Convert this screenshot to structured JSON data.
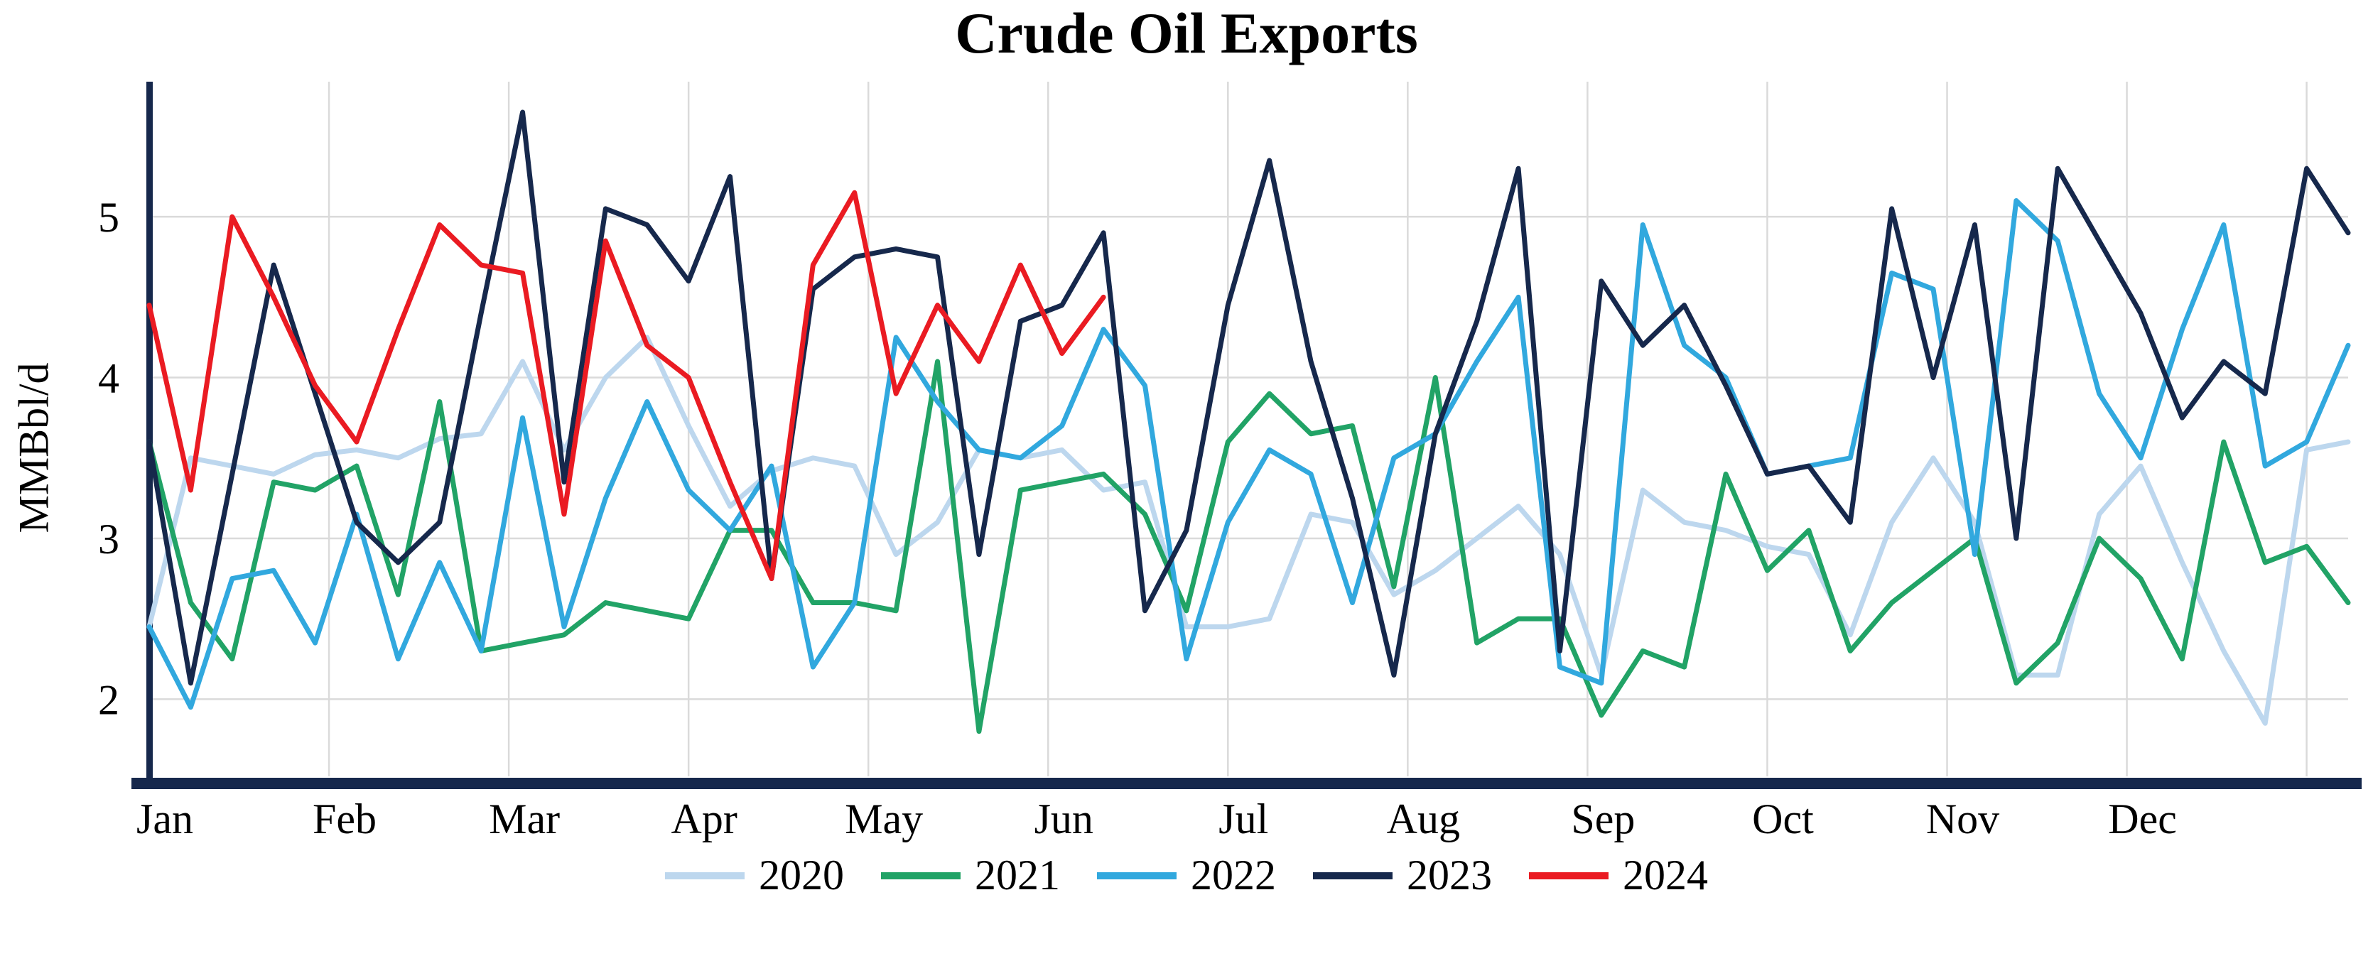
{
  "chart_data": {
    "type": "line",
    "title": "Crude Oil Exports",
    "ylabel": "MMBbl/d",
    "x_unit": "week of year",
    "months": [
      "Jan",
      "Feb",
      "Mar",
      "Apr",
      "May",
      "Jun",
      "Jul",
      "Aug",
      "Sep",
      "Oct",
      "Nov",
      "Dec"
    ],
    "yticks": [
      2,
      3,
      4,
      5
    ],
    "ylim": [
      1.52,
      5.84
    ],
    "weeks_domain": 53,
    "grid": true,
    "legend_position": "bottom",
    "colors": {
      "grid": "#DADADA",
      "axis": "#16284C",
      "background": "#FFFFFF"
    },
    "series": [
      {
        "name": "2020",
        "color": "#BDD7EE",
        "values": [
          2.45,
          3.5,
          3.45,
          3.4,
          3.52,
          3.55,
          3.5,
          3.62,
          3.65,
          4.1,
          3.55,
          4.0,
          4.25,
          3.7,
          3.2,
          3.42,
          3.5,
          3.45,
          2.9,
          3.1,
          3.55,
          3.5,
          3.55,
          3.3,
          3.35,
          2.45,
          2.45,
          2.5,
          3.15,
          3.1,
          2.65,
          2.8,
          3.0,
          3.2,
          2.9,
          2.15,
          3.3,
          3.1,
          3.05,
          2.95,
          2.9,
          2.4,
          3.1,
          3.5,
          3.1,
          2.15,
          2.15,
          3.15,
          3.45,
          2.85,
          2.3,
          1.85,
          3.55,
          3.6
        ]
      },
      {
        "name": "2021",
        "color": "#21A366",
        "values": [
          3.6,
          2.6,
          2.25,
          3.35,
          3.3,
          3.45,
          2.65,
          3.85,
          2.3,
          2.35,
          2.4,
          2.6,
          2.55,
          2.5,
          3.05,
          3.05,
          2.6,
          2.6,
          2.55,
          4.1,
          1.8,
          3.3,
          3.35,
          3.4,
          3.15,
          2.55,
          3.6,
          3.9,
          3.65,
          3.7,
          2.7,
          4.0,
          2.35,
          2.5,
          2.5,
          1.9,
          2.3,
          2.2,
          3.4,
          2.8,
          3.05,
          2.3,
          2.6,
          2.8,
          3.0,
          2.1,
          2.35,
          3.0,
          2.75,
          2.25,
          3.6,
          2.85,
          2.95,
          2.6
        ]
      },
      {
        "name": "2022",
        "color": "#31A8DE",
        "values": [
          2.45,
          1.95,
          2.75,
          2.8,
          2.35,
          3.15,
          2.25,
          2.85,
          2.3,
          3.75,
          2.45,
          3.25,
          3.85,
          3.3,
          3.05,
          3.45,
          2.2,
          2.6,
          4.25,
          3.85,
          3.55,
          3.5,
          3.7,
          4.3,
          3.95,
          2.25,
          3.1,
          3.55,
          3.4,
          2.6,
          3.5,
          3.65,
          4.1,
          4.5,
          2.2,
          2.1,
          4.95,
          4.2,
          4.0,
          3.4,
          3.45,
          3.5,
          4.65,
          4.55,
          2.9,
          5.1,
          4.85,
          3.9,
          3.5,
          4.3,
          4.95,
          3.45,
          3.6,
          4.2
        ]
      },
      {
        "name": "2023",
        "color": "#16284C",
        "values": [
          3.6,
          2.1,
          3.4,
          4.7,
          3.9,
          3.1,
          2.85,
          3.1,
          4.4,
          5.65,
          3.35,
          5.05,
          4.95,
          4.6,
          5.25,
          2.75,
          4.55,
          4.75,
          4.8,
          4.75,
          2.9,
          4.35,
          4.45,
          4.9,
          2.55,
          3.05,
          4.45,
          5.35,
          4.1,
          3.25,
          2.15,
          3.65,
          4.35,
          5.3,
          2.3,
          4.6,
          4.2,
          4.45,
          3.95,
          3.4,
          3.45,
          3.1,
          5.05,
          4.0,
          4.95,
          3.0,
          5.3,
          4.85,
          4.4,
          3.75,
          4.1,
          3.9,
          5.3,
          4.9
        ]
      },
      {
        "name": "2024",
        "color": "#EA1B22",
        "values": [
          4.45,
          3.3,
          5.0,
          4.5,
          3.95,
          3.6,
          4.3,
          4.95,
          4.7,
          4.65,
          3.15,
          4.85,
          4.2,
          4.0,
          3.35,
          2.75,
          4.7,
          5.15,
          3.9,
          4.45,
          4.1,
          4.7,
          4.15,
          4.5
        ]
      }
    ]
  }
}
